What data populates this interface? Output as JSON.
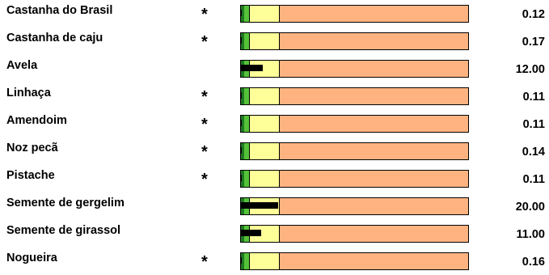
{
  "chart_data": {
    "type": "bar",
    "orientation": "horizontal",
    "categories": [
      "Castanha do Brasil",
      "Castanha de caju",
      "Avela",
      "Linhaça",
      "Amendoim",
      "Noz pecã",
      "Pistache",
      "Semente de gergelim",
      "Semente de girassol",
      "Nogueira"
    ],
    "values": [
      0.12,
      0.17,
      12.0,
      0.11,
      0.11,
      0.14,
      0.11,
      20.0,
      11.0,
      0.16
    ],
    "value_labels": [
      "0.12",
      "0.17",
      "12.00",
      "0.11",
      "0.11",
      "0.14",
      "0.11",
      "20.00",
      "11.00",
      "0.16"
    ],
    "markers": [
      "*",
      "*",
      "",
      "*",
      "*",
      "*",
      "*",
      "",
      "",
      "*"
    ],
    "xlim": [
      0,
      120
    ],
    "bands": [
      {
        "from": 0,
        "to": 2,
        "color": "#1f7a1f"
      },
      {
        "from": 2,
        "to": 4.5,
        "color": "#55c23a"
      },
      {
        "from": 4.5,
        "to": 20,
        "color": "#ffff99"
      },
      {
        "from": 20,
        "to": 120,
        "color": "#ffb380"
      }
    ],
    "bar_color": "#000000",
    "title": "",
    "xlabel": "",
    "ylabel": "",
    "grid": false,
    "legend": "none"
  }
}
